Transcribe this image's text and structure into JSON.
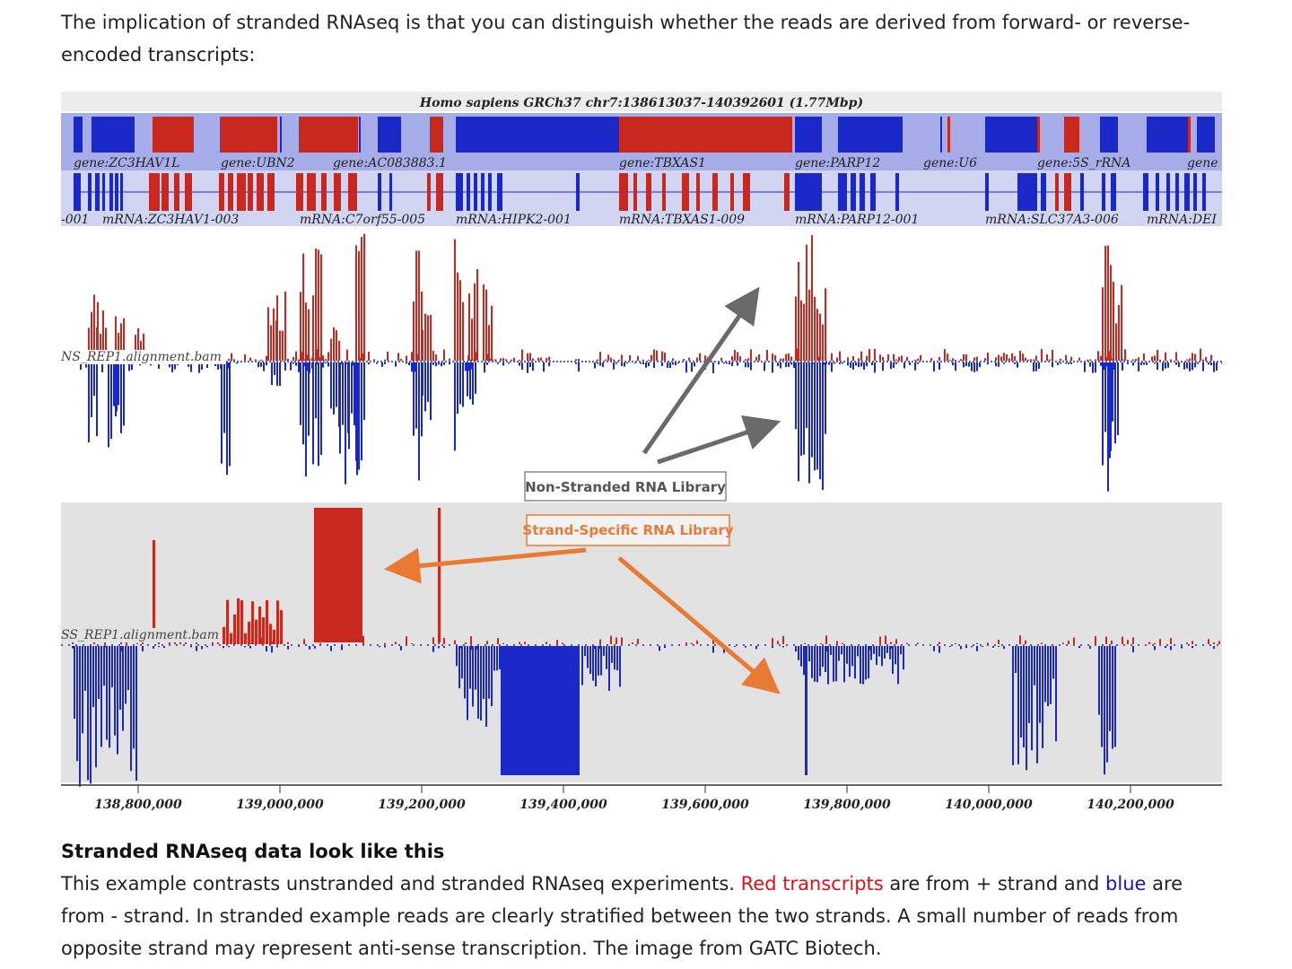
{
  "intro": {
    "text": "The implication of stranded RNAseq is that you can distinguish whether the reads are derived from forward- or reverse-encoded transcripts:"
  },
  "figure": {
    "title": "Homo sapiens GRCh37 chr7:138613037-140392601 (1.77Mbp)",
    "gene_labels": [
      "gene:ZC3HAV1L",
      "gene:UBN2",
      "gene:AC083883.1",
      "gene:TBXAS1",
      "gene:PARP12",
      "gene:U6",
      "gene:5S_rRNA",
      "gene"
    ],
    "mrna_labels": [
      "-001",
      "mRNA:ZC3HAV1-003",
      "mRNA:C7orf55-005",
      "mRNA:HIPK2-001",
      "mRNA:TBXAS1-009",
      "mRNA:PARP12-001",
      "mRNA:SLC37A3-006",
      "mRNA:DEI"
    ],
    "track1_label": "NS_REP1.alignment.bam",
    "track2_label": "SS_REP1.alignment.bam",
    "callout_nonstranded": "Non-Stranded RNA Library",
    "callout_stranded": "Strand-Specific RNA Library",
    "axis_ticks": [
      "138,800,000",
      "139,000,000",
      "139,200,000",
      "139,400,000",
      "139,600,000",
      "139,800,000",
      "140,000,000",
      "140,200,000"
    ],
    "colors": {
      "plus_strand": "#c9281e",
      "minus_strand": "#1a28c8",
      "gene_track_bg": "#a7ade8",
      "mrna_track_bg": "#d2d5f2",
      "stranded_bg": "#e2e2e2",
      "arrow_gray": "#6a6a6a",
      "arrow_orange": "#e87a34"
    }
  },
  "section": {
    "heading": "Stranded RNAseq data look like this",
    "caption_part1": "This example contrasts unstranded and stranded RNAseq experiments. ",
    "caption_red": "Red transcripts",
    "caption_part2": " are from + strand and ",
    "caption_blue": "blue",
    "caption_part3": " are from - strand. In stranded example reads are clearly stratified between the two strands. A small number of reads from opposite strand may represent anti-sense transcription. The image from GATC Biotech."
  }
}
